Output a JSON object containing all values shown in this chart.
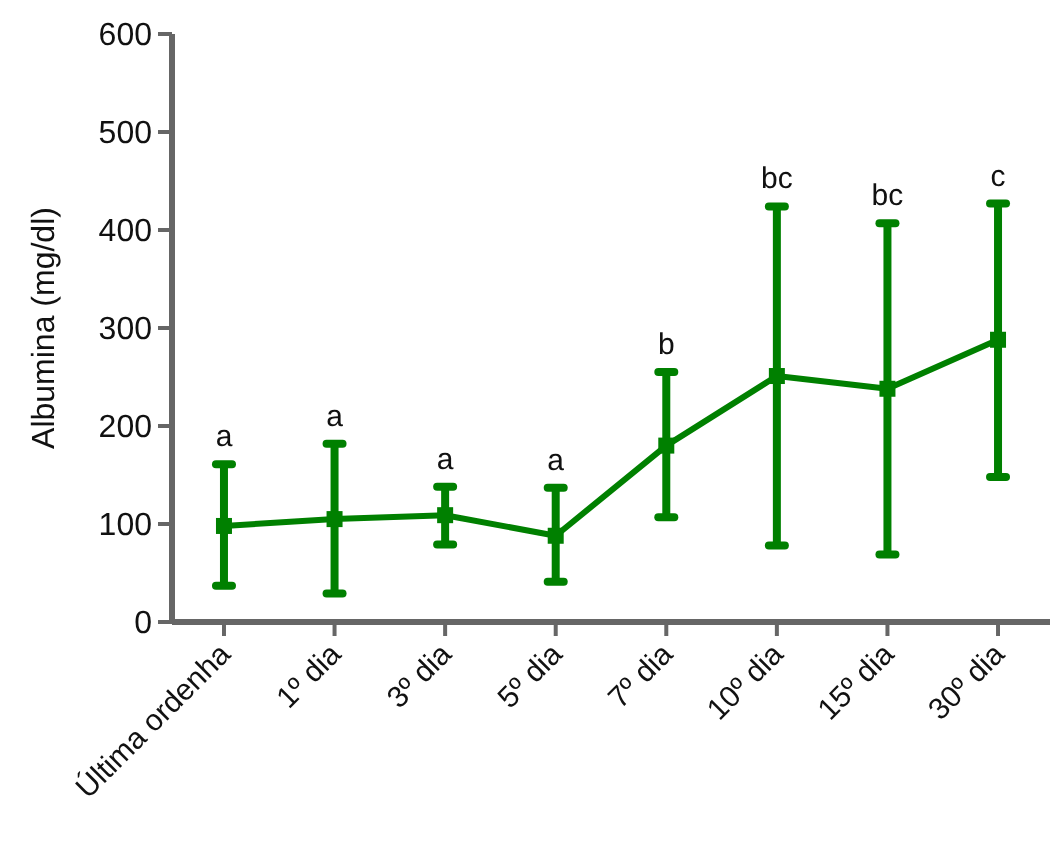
{
  "chart_data": {
    "type": "line",
    "ylabel": "Albumina (mg/dl)",
    "categories": [
      "Última ordenha",
      "1º dia",
      "3º dia",
      "5º dia",
      "7º dia",
      "10º dia",
      "15º dia",
      "30º dia"
    ],
    "series": [
      {
        "color": "#008000",
        "values": [
          98,
          105,
          109,
          88,
          180,
          251,
          238,
          288
        ],
        "errors": [
          [
            37,
            161
          ],
          [
            29,
            182
          ],
          [
            79,
            138
          ],
          [
            41,
            137
          ],
          [
            107,
            255
          ],
          [
            78,
            424
          ],
          [
            69,
            407
          ],
          [
            148,
            427
          ]
        ]
      }
    ],
    "ylim": [
      0,
      600
    ],
    "yticks": [
      0,
      100,
      200,
      300,
      400,
      500,
      600
    ],
    "grid": false,
    "marker": "square",
    "line_style": "solid",
    "annotations": [
      {
        "text": "a",
        "x": "Última ordenha",
        "y": 161
      },
      {
        "text": "a",
        "x": "1º dia",
        "y": 182
      },
      {
        "text": "a",
        "x": "3º dia",
        "y": 138
      },
      {
        "text": "a",
        "x": "5º dia",
        "y": 137
      },
      {
        "text": "b",
        "x": "7º dia",
        "y": 255
      },
      {
        "text": "bc",
        "x": "10º dia",
        "y": 424
      },
      {
        "text": "bc",
        "x": "15º dia",
        "y": 407
      },
      {
        "text": "c",
        "x": "30º dia",
        "y": 427
      }
    ]
  }
}
